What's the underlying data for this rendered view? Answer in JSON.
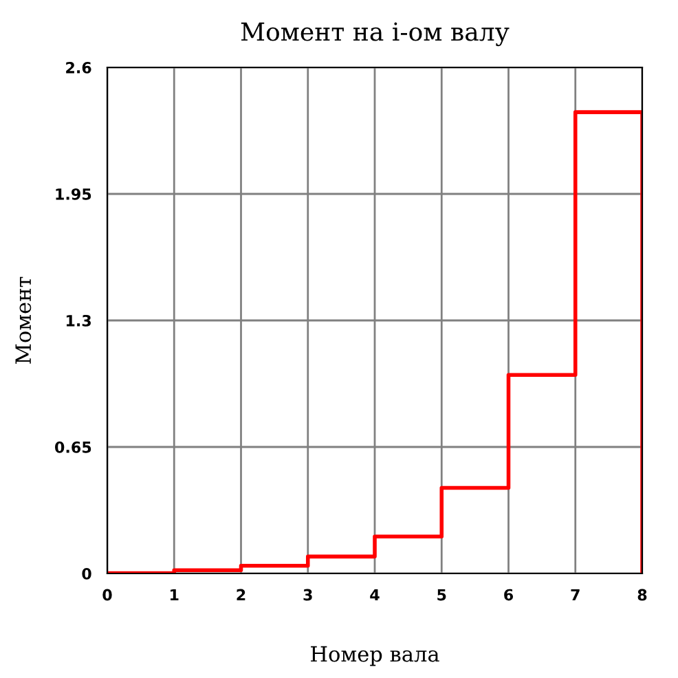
{
  "chart_data": {
    "type": "step",
    "title": "Момент на i-ом валу",
    "xlabel": "Номер вала",
    "ylabel": "Момент",
    "x": [
      0,
      1,
      2,
      3,
      4,
      5,
      6,
      7,
      8
    ],
    "series": [
      {
        "color": "#ff0000",
        "values": [
          0.002,
          0.017,
          0.04,
          0.087,
          0.19,
          0.44,
          1.02,
          2.37,
          0
        ]
      }
    ],
    "xlim": [
      0,
      8
    ],
    "xticks": [
      0,
      1,
      2,
      3,
      4,
      5,
      6,
      7,
      8
    ],
    "ylim": [
      0,
      2.6
    ],
    "yticks": [
      0,
      0.65,
      1.3,
      1.95,
      2.6
    ],
    "grid": true,
    "line_style": "solid"
  }
}
